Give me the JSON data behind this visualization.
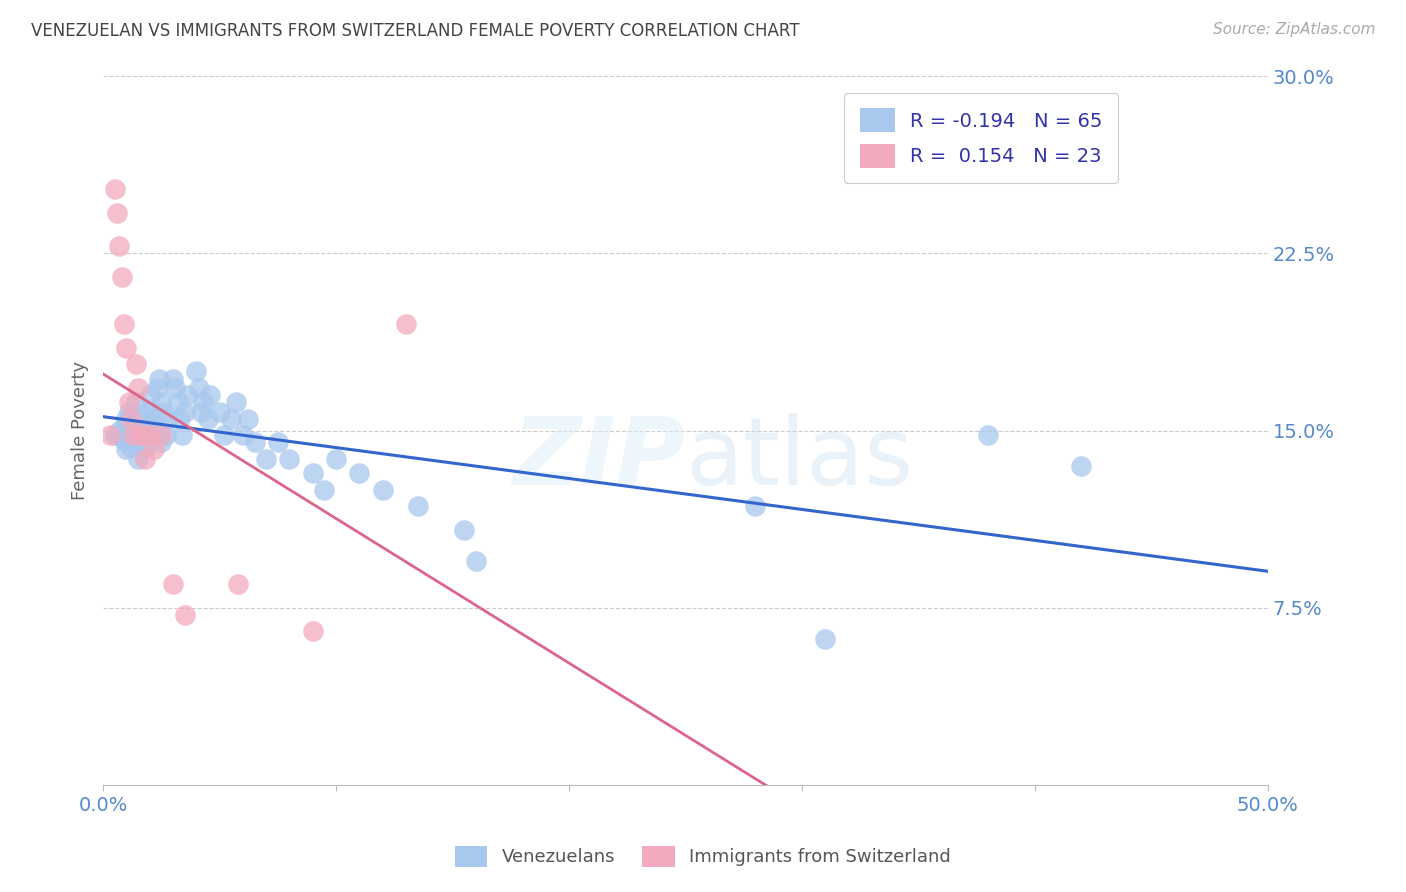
{
  "title": "VENEZUELAN VS IMMIGRANTS FROM SWITZERLAND FEMALE POVERTY CORRELATION CHART",
  "source": "Source: ZipAtlas.com",
  "ylabel": "Female Poverty",
  "x_min": 0.0,
  "x_max": 0.5,
  "y_min": 0.0,
  "y_max": 0.3,
  "x_ticks": [
    0.0,
    0.1,
    0.2,
    0.3,
    0.4,
    0.5
  ],
  "x_tick_labels": [
    "0.0%",
    "",
    "",
    "",
    "",
    "50.0%"
  ],
  "y_ticks": [
    0.075,
    0.15,
    0.225,
    0.3
  ],
  "y_tick_labels": [
    "7.5%",
    "15.0%",
    "22.5%",
    "30.0%"
  ],
  "blue_R": -0.194,
  "blue_N": 65,
  "pink_R": 0.154,
  "pink_N": 23,
  "blue_color": "#A8C8EE",
  "pink_color": "#F2AABE",
  "blue_line_color": "#3366CC",
  "pink_line_color": "#DD6688",
  "grid_color": "#CCCCCC",
  "title_color": "#444444",
  "axis_label_color": "#5588CC",
  "blue_x": [
    0.005,
    0.007,
    0.008,
    0.009,
    0.01,
    0.01,
    0.01,
    0.011,
    0.012,
    0.012,
    0.013,
    0.014,
    0.015,
    0.015,
    0.015,
    0.016,
    0.017,
    0.018,
    0.019,
    0.02,
    0.02,
    0.021,
    0.022,
    0.023,
    0.024,
    0.025,
    0.025,
    0.026,
    0.027,
    0.028,
    0.03,
    0.031,
    0.032,
    0.033,
    0.034,
    0.035,
    0.036,
    0.04,
    0.041,
    0.042,
    0.043,
    0.045,
    0.046,
    0.05,
    0.052,
    0.055,
    0.057,
    0.06,
    0.062,
    0.065,
    0.07,
    0.075,
    0.08,
    0.09,
    0.095,
    0.1,
    0.11,
    0.12,
    0.135,
    0.155,
    0.16,
    0.28,
    0.31,
    0.38,
    0.42
  ],
  "blue_y": [
    0.148,
    0.15,
    0.147,
    0.152,
    0.155,
    0.145,
    0.142,
    0.158,
    0.148,
    0.143,
    0.155,
    0.162,
    0.145,
    0.148,
    0.138,
    0.152,
    0.148,
    0.143,
    0.158,
    0.165,
    0.155,
    0.158,
    0.152,
    0.168,
    0.172,
    0.162,
    0.145,
    0.158,
    0.148,
    0.155,
    0.172,
    0.168,
    0.162,
    0.155,
    0.148,
    0.158,
    0.165,
    0.175,
    0.168,
    0.158,
    0.162,
    0.155,
    0.165,
    0.158,
    0.148,
    0.155,
    0.162,
    0.148,
    0.155,
    0.145,
    0.138,
    0.145,
    0.138,
    0.132,
    0.125,
    0.138,
    0.132,
    0.125,
    0.118,
    0.108,
    0.095,
    0.118,
    0.062,
    0.148,
    0.135
  ],
  "pink_x": [
    0.003,
    0.005,
    0.006,
    0.007,
    0.008,
    0.009,
    0.01,
    0.011,
    0.012,
    0.013,
    0.014,
    0.015,
    0.016,
    0.017,
    0.018,
    0.02,
    0.022,
    0.025,
    0.03,
    0.035,
    0.058,
    0.09,
    0.13
  ],
  "pink_y": [
    0.148,
    0.252,
    0.242,
    0.228,
    0.215,
    0.195,
    0.185,
    0.162,
    0.155,
    0.148,
    0.178,
    0.168,
    0.148,
    0.148,
    0.138,
    0.148,
    0.142,
    0.148,
    0.085,
    0.072,
    0.085,
    0.065,
    0.195
  ]
}
